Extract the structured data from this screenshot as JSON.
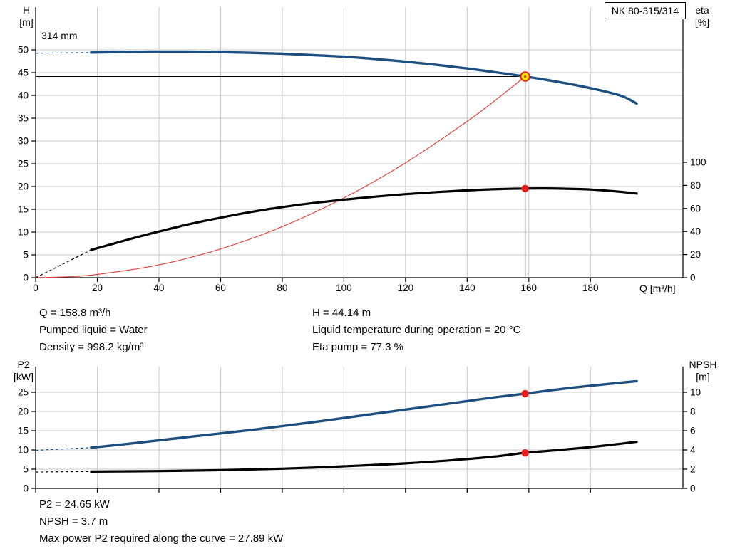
{
  "colors": {
    "grid": "#c8c8c8",
    "axis": "#000000",
    "guide_gray": "#7f7f7f",
    "marker_red": "#e81e1e",
    "marker_yellow": "#ffe600",
    "curve_blue": "#1c4f7f",
    "curve_black": "#000000",
    "system_red": "#e0433c"
  },
  "top_info": {
    "col1": [
      "Q = 158.8 m³/h",
      "Pumped liquid = Water",
      "Density = 998.2 kg/m³"
    ],
    "col2": [
      "H = 44.14 m",
      "Liquid temperature during operation = 20 °C",
      "Eta pump = 77.3 %"
    ]
  },
  "bottom_info": [
    "P2 = 24.65 kW",
    "NPSH = 3.7 m",
    "Max power P2 required along the curve = 27.89 kW"
  ],
  "chart_data": [
    {
      "id": "qh",
      "type": "line",
      "title": "NK 80-315/314",
      "annotation": "314 mm",
      "xlabel": "Q [m³/h]",
      "left_axis_title": [
        "H",
        "[m]"
      ],
      "right_axis_title": [
        "eta",
        "[%]"
      ],
      "xlim": [
        0,
        210
      ],
      "xticks": [
        0,
        20,
        40,
        60,
        80,
        100,
        120,
        140,
        160,
        180
      ],
      "ylim_left": [
        0,
        50
      ],
      "yticks_left": [
        0,
        5,
        10,
        15,
        20,
        25,
        30,
        35,
        40,
        45,
        50
      ],
      "ylim_right": [
        0,
        100
      ],
      "yticks_right": [
        0,
        20,
        40,
        60,
        80,
        100
      ],
      "duty_guides": {
        "q": 158.8,
        "h": 44.14
      },
      "duty_point": {
        "Q_m3h": 158.8,
        "H_m": 44.14,
        "eta_pct": 77.3
      },
      "series": [
        {
          "name": "system-curve",
          "axis": "left",
          "color": "#e0433c",
          "width": 1.2,
          "x": [
            0,
            10,
            20,
            40,
            60,
            80,
            100,
            120,
            140,
            150,
            158.8
          ],
          "y": [
            0,
            0.18,
            0.7,
            2.8,
            6.3,
            11.2,
            17.5,
            25.2,
            34.3,
            39.4,
            44.14
          ]
        },
        {
          "name": "head-curve",
          "axis": "left",
          "color": "#1c4f7f",
          "width": 3.4,
          "x": [
            18,
            30,
            40,
            50,
            60,
            70,
            80,
            90,
            100,
            110,
            120,
            130,
            140,
            150,
            158.8,
            170,
            180,
            190,
            195
          ],
          "y": [
            49.4,
            49.55,
            49.6,
            49.6,
            49.5,
            49.35,
            49.15,
            48.85,
            48.5,
            48.0,
            47.4,
            46.7,
            45.9,
            45.0,
            44.14,
            42.9,
            41.6,
            39.9,
            38.2
          ],
          "pre_dash": {
            "x": [
              0,
              18
            ],
            "y": [
              49.25,
              49.4
            ]
          }
        },
        {
          "name": "efficiency-curve",
          "axis": "right",
          "color": "#000000",
          "width": 3.2,
          "x": [
            18,
            30,
            40,
            50,
            60,
            70,
            80,
            90,
            100,
            110,
            120,
            130,
            140,
            150,
            158.8,
            165,
            170,
            180,
            190,
            195
          ],
          "y": [
            24,
            33,
            40,
            46.5,
            52,
            57,
            61.2,
            64.7,
            67.6,
            70.2,
            72.4,
            74.2,
            75.7,
            76.8,
            77.3,
            77.4,
            77.2,
            76.4,
            74.4,
            72.9
          ],
          "pre_dash": {
            "x": [
              0,
              18
            ],
            "y": [
              0,
              24
            ]
          }
        }
      ],
      "markers": [
        {
          "name": "duty-point-marker",
          "type": "duty",
          "axis": "left",
          "x": 158.8,
          "y": 44.14
        },
        {
          "name": "eta-duty-dot",
          "type": "dot",
          "axis": "right",
          "x": 158.8,
          "y": 77.3
        }
      ]
    },
    {
      "id": "p2npsh",
      "type": "line",
      "left_axis_title": [
        "P2",
        "[kW]"
      ],
      "right_axis_title": [
        "NPSH",
        "[m]"
      ],
      "xlim": [
        0,
        210
      ],
      "xticks": [
        0,
        20,
        40,
        60,
        80,
        100,
        120,
        140,
        160,
        180
      ],
      "ylim_left": [
        0,
        25
      ],
      "yticks_left": [
        0,
        5,
        10,
        15,
        20,
        25
      ],
      "ylim_right": [
        0,
        10
      ],
      "yticks_right": [
        0,
        2,
        4,
        6,
        8,
        10
      ],
      "series": [
        {
          "name": "p2-curve",
          "axis": "left",
          "color": "#1c4f7f",
          "width": 3.4,
          "x": [
            18,
            30,
            40,
            50,
            60,
            70,
            80,
            90,
            100,
            110,
            120,
            130,
            140,
            150,
            158.8,
            170,
            180,
            190,
            195
          ],
          "y": [
            10.6,
            11.6,
            12.5,
            13.4,
            14.3,
            15.2,
            16.2,
            17.2,
            18.3,
            19.4,
            20.5,
            21.6,
            22.7,
            23.8,
            24.65,
            25.8,
            26.7,
            27.5,
            27.89
          ],
          "pre_dash": {
            "x": [
              0,
              18
            ],
            "y": [
              9.9,
              10.6
            ]
          }
        },
        {
          "name": "npsh-curve",
          "axis": "right",
          "color": "#000000",
          "width": 3.2,
          "x": [
            18,
            40,
            60,
            80,
            100,
            120,
            140,
            150,
            158.8,
            170,
            180,
            190,
            195
          ],
          "y": [
            1.75,
            1.8,
            1.9,
            2.05,
            2.3,
            2.6,
            3.05,
            3.35,
            3.7,
            4.0,
            4.3,
            4.65,
            4.85
          ],
          "pre_dash": {
            "x": [
              0,
              18
            ],
            "y": [
              1.7,
              1.75
            ]
          }
        }
      ],
      "markers": [
        {
          "name": "p2-duty-dot",
          "type": "dot",
          "axis": "left",
          "x": 158.8,
          "y": 24.65
        },
        {
          "name": "npsh-duty-dot",
          "type": "dot",
          "axis": "right",
          "x": 158.8,
          "y": 3.7
        }
      ]
    }
  ]
}
